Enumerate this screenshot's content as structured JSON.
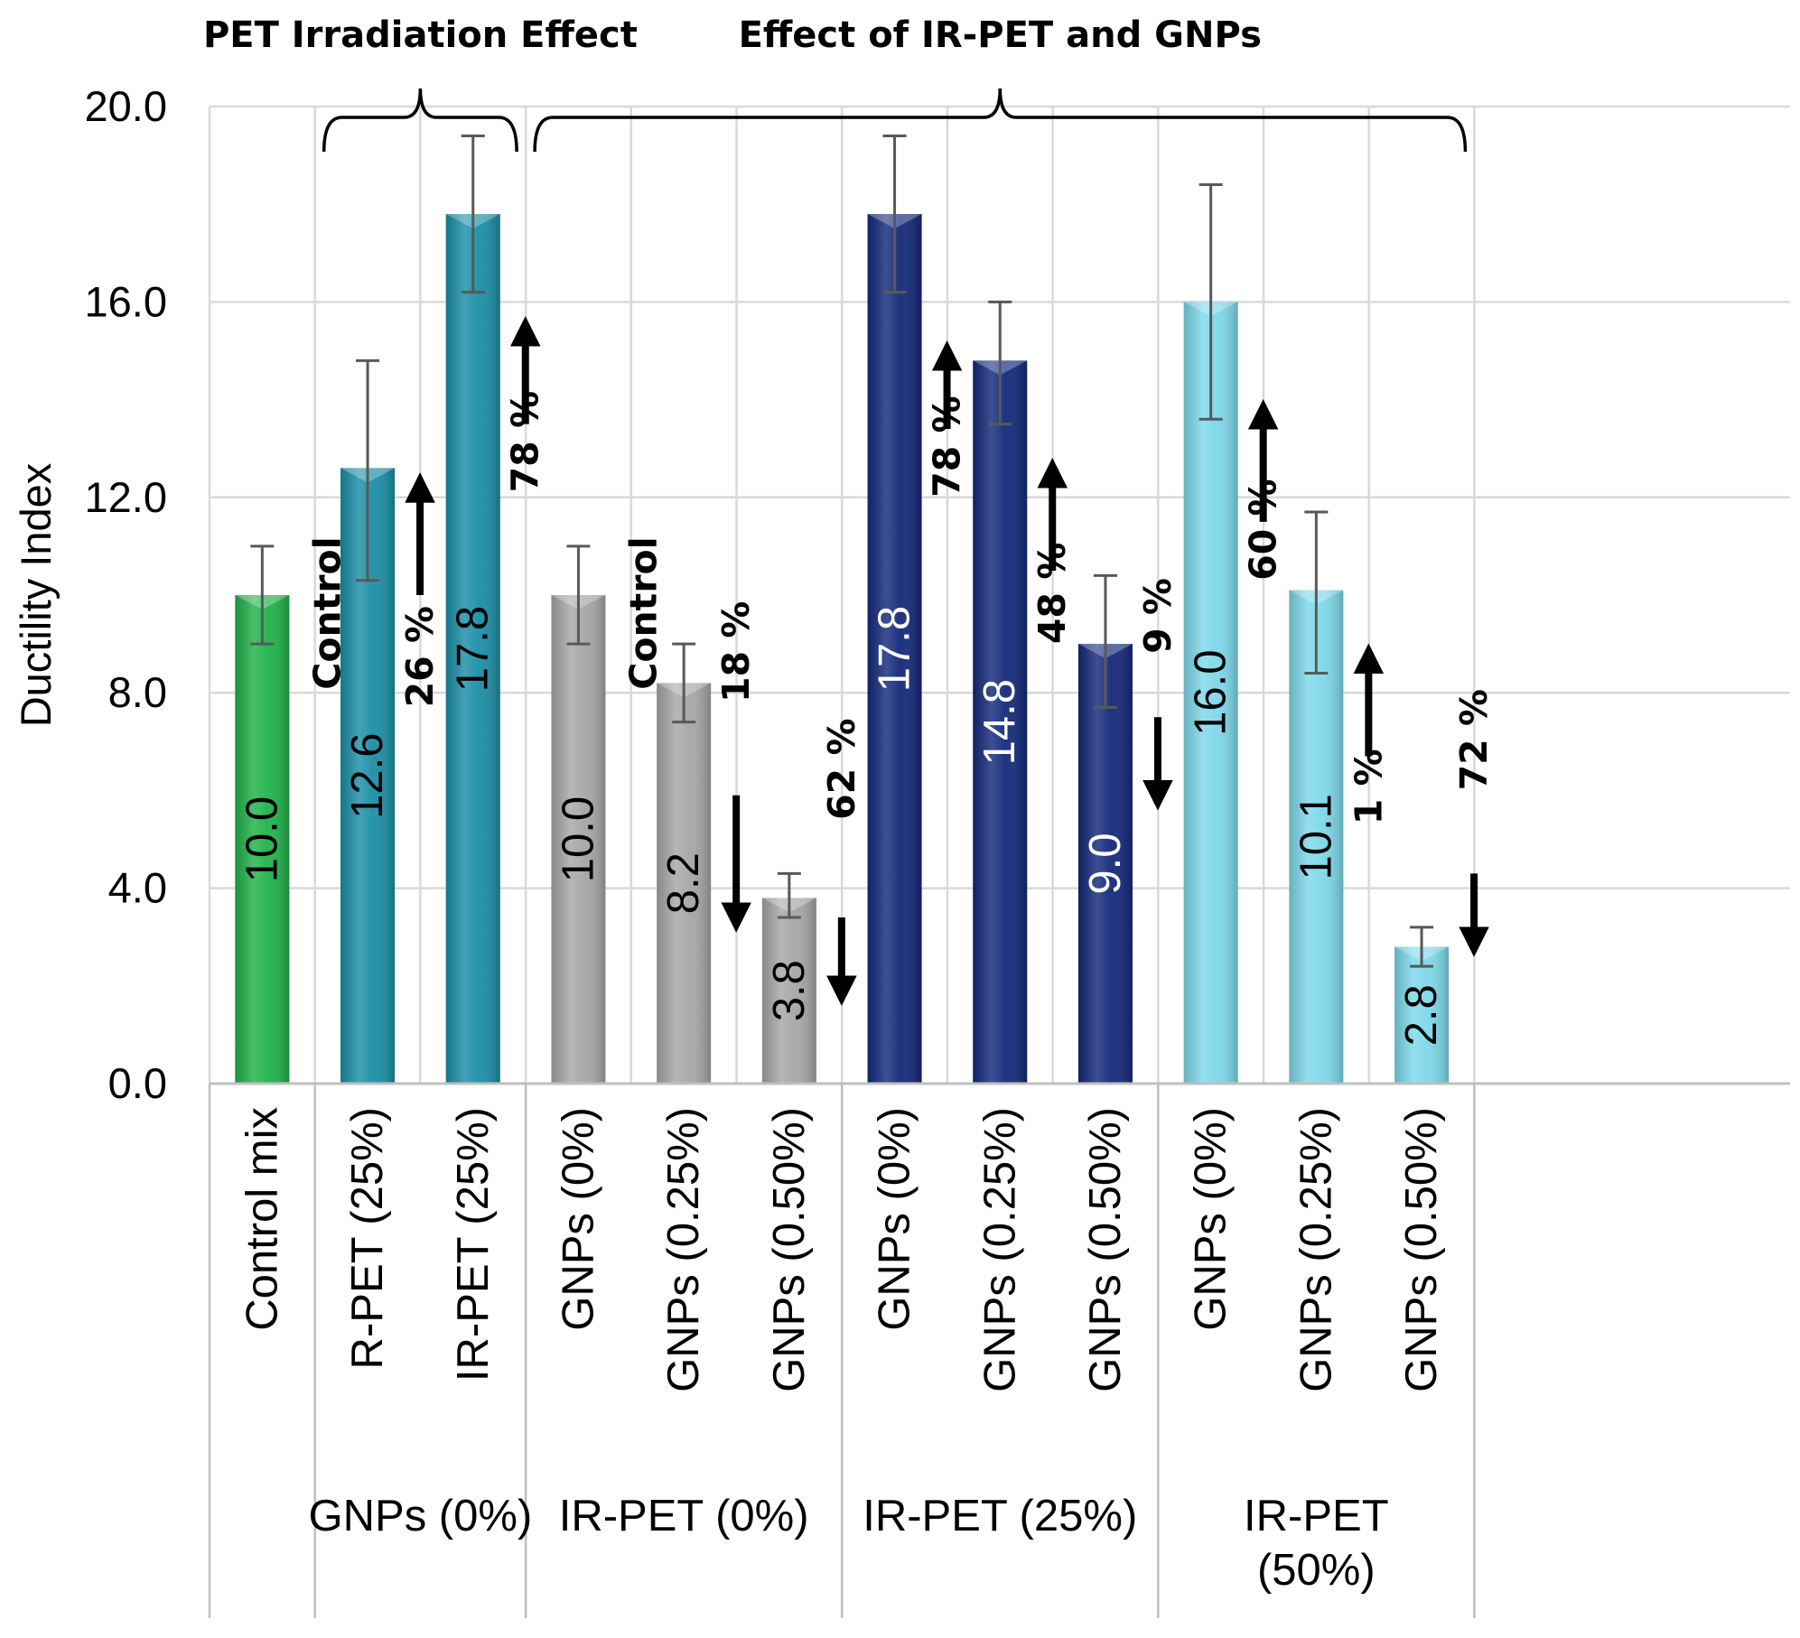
{
  "chart_data": {
    "type": "bar",
    "ylabel": "Ductility Index",
    "ylim": [
      0,
      20
    ],
    "yticks": [
      "0.0",
      "4.0",
      "8.0",
      "12.0",
      "16.0",
      "20.0"
    ],
    "grid": true,
    "headers": [
      {
        "label": "PET Irradiation Effect",
        "bracket_from_bar": 1,
        "bracket_to_bar": 2
      },
      {
        "label": "Effect of IR-PET and GNPs",
        "bracket_from_bar": 3,
        "bracket_to_bar": 11
      }
    ],
    "groups": [
      {
        "label": "",
        "bars": [
          0
        ]
      },
      {
        "label": "GNPs (0%)",
        "bars": [
          1,
          2
        ]
      },
      {
        "label": "IR-PET (0%)",
        "bars": [
          3,
          4,
          5
        ]
      },
      {
        "label": "IR-PET (25%)",
        "bars": [
          6,
          7,
          8
        ]
      },
      {
        "label": "IR-PET\n(50%)",
        "bars": [
          9,
          10,
          11
        ]
      }
    ],
    "bars": [
      {
        "category": "Control mix",
        "value": 10.0,
        "label": "10.0",
        "err_low": 9.0,
        "err_high": 11.0,
        "color": "#1fb24a",
        "label_color": "#000000"
      },
      {
        "category": "R-PET (25%)",
        "value": 12.6,
        "label": "12.6",
        "err_low": 10.3,
        "err_high": 14.8,
        "color": "#1a8ea6",
        "label_color": "#000000"
      },
      {
        "category": "IR-PET (25%)",
        "value": 17.8,
        "label": "17.8",
        "err_low": 16.2,
        "err_high": 19.4,
        "color": "#1a8ea6",
        "label_color": "#000000"
      },
      {
        "category": "GNPs (0%)",
        "value": 10.0,
        "label": "10.0",
        "err_low": 9.0,
        "err_high": 11.0,
        "color": "#a6a6a6",
        "label_color": "#000000"
      },
      {
        "category": "GNPs (0.25%)",
        "value": 8.2,
        "label": "8.2",
        "err_low": 7.4,
        "err_high": 9.0,
        "color": "#a6a6a6",
        "label_color": "#000000"
      },
      {
        "category": "GNPs (0.50%)",
        "value": 3.8,
        "label": "3.8",
        "err_low": 3.4,
        "err_high": 4.3,
        "color": "#a6a6a6",
        "label_color": "#000000"
      },
      {
        "category": "GNPs (0%)",
        "value": 17.8,
        "label": "17.8",
        "err_low": 16.2,
        "err_high": 19.4,
        "color": "#13287a",
        "label_color": "#ffffff"
      },
      {
        "category": "GNPs (0.25%)",
        "value": 14.8,
        "label": "14.8",
        "err_low": 13.5,
        "err_high": 16.0,
        "color": "#13287a",
        "label_color": "#ffffff"
      },
      {
        "category": "GNPs (0.50%)",
        "value": 9.0,
        "label": "9.0",
        "err_low": 7.7,
        "err_high": 10.4,
        "color": "#13287a",
        "label_color": "#ffffff"
      },
      {
        "category": "GNPs (0%)",
        "value": 16.0,
        "label": "16.0",
        "err_low": 13.6,
        "err_high": 18.4,
        "color": "#7dd8ea",
        "label_color": "#000000"
      },
      {
        "category": "GNPs (0.25%)",
        "value": 10.1,
        "label": "10.1",
        "err_low": 8.4,
        "err_high": 11.7,
        "color": "#7dd8ea",
        "label_color": "#000000"
      },
      {
        "category": "GNPs (0.50%)",
        "value": 2.8,
        "label": "2.8",
        "err_low": 2.4,
        "err_high": 3.2,
        "color": "#7dd8ea",
        "label_color": "#000000"
      }
    ],
    "control_labels": [
      {
        "text": "Control",
        "bar": 0
      },
      {
        "text": "Control",
        "bar": 3
      }
    ],
    "annotations": [
      {
        "text": "26 %",
        "bar": 1,
        "direction": "up",
        "arrow_from": 10.0,
        "arrow_to": 12.2,
        "text_anchor_value": 7.7
      },
      {
        "text": "78 %",
        "bar": 2,
        "direction": "up",
        "arrow_from": 13.5,
        "arrow_to": 15.4,
        "text_anchor_value": 12.1
      },
      {
        "text": "18 %",
        "bar": 4,
        "direction": "down",
        "arrow_from": 5.9,
        "arrow_to": 3.4,
        "text_anchor_value": 7.8
      },
      {
        "text": "62 %",
        "bar": 5,
        "direction": "down",
        "arrow_from": 3.4,
        "arrow_to": 1.9,
        "text_anchor_value": 5.4
      },
      {
        "text": "78 %",
        "bar": 6,
        "direction": "up",
        "arrow_from": 13.4,
        "arrow_to": 14.9,
        "text_anchor_value": 12.0
      },
      {
        "text": "48 %",
        "bar": 7,
        "direction": "up",
        "arrow_from": 10.5,
        "arrow_to": 12.5,
        "text_anchor_value": 9.0
      },
      {
        "text": "9 %",
        "bar": 8,
        "direction": "down",
        "arrow_from": 7.5,
        "arrow_to": 5.9,
        "text_anchor_value": 8.8
      },
      {
        "text": "60 %",
        "bar": 9,
        "direction": "up",
        "arrow_from": 11.5,
        "arrow_to": 13.7,
        "text_anchor_value": 10.3
      },
      {
        "text": "1 %",
        "bar": 10,
        "direction": "up",
        "arrow_from": 6.7,
        "arrow_to": 8.7,
        "text_anchor_value": 5.3
      },
      {
        "text": "72 %",
        "bar": 11,
        "direction": "down",
        "arrow_from": 4.3,
        "arrow_to": 2.9,
        "text_anchor_value": 6.0
      }
    ]
  }
}
